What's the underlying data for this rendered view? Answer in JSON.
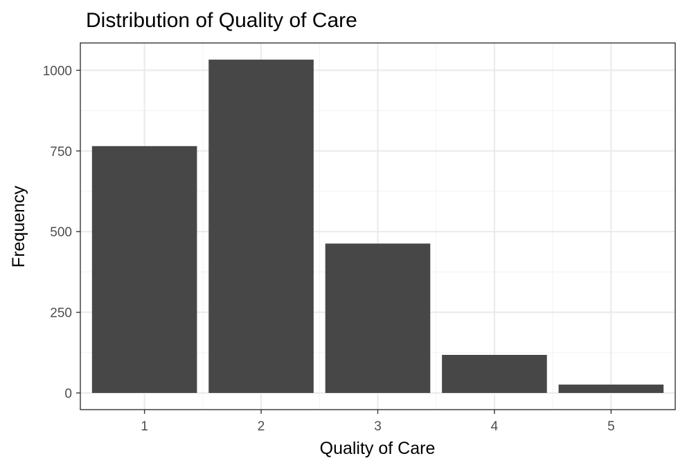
{
  "chart_data": {
    "type": "bar",
    "title": "Distribution of Quality of Care",
    "xlabel": "Quality of Care",
    "ylabel": "Frequency",
    "categories": [
      "1",
      "2",
      "3",
      "4",
      "5"
    ],
    "values": [
      765,
      1033,
      463,
      118,
      26
    ],
    "xlim": [
      0.45,
      5.55
    ],
    "ylim": [
      -51.65,
      1084.65
    ],
    "y_ticks": [
      0,
      250,
      500,
      750,
      1000
    ],
    "y_tick_labels": [
      "0",
      "250",
      "500",
      "750",
      "1000"
    ],
    "bar_width": 0.9,
    "grid": true,
    "legend": "none",
    "colors": {
      "bar": "#474747",
      "panel_border": "#333333",
      "grid_major": "#ebebeb",
      "grid_minor": "#f4f4f4",
      "tick_label": "#4d4d4d",
      "background": "#ffffff"
    }
  }
}
